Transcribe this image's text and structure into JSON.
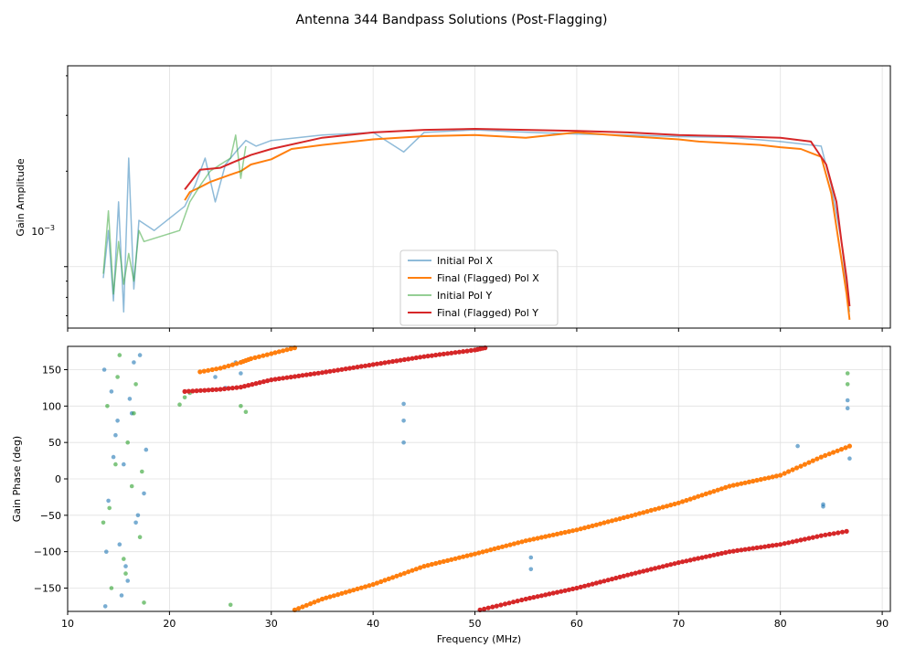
{
  "chart_data": [
    {
      "type": "line",
      "panel": "top",
      "suptitle": "Antenna 344 Bandpass Solutions (Post-Flagging)",
      "xlabel": "",
      "ylabel": "Gain Amplitude",
      "yscale": "log",
      "ylim": [
        0.00064,
        0.0043
      ],
      "xlim": [
        10,
        90.8
      ],
      "ytick_label": "10",
      "ytick_label_exp": "−3",
      "grid": true,
      "legend_position": "lower-center",
      "series": [
        {
          "name": "Initial Pol X",
          "color": "#1f77b4",
          "alpha": 0.5,
          "x": [
            13.5,
            14.0,
            14.5,
            15.0,
            15.5,
            16.0,
            16.5,
            17.0,
            18.5,
            21.5,
            22.5,
            23.5,
            24.5,
            25.5,
            26.5,
            27.5,
            28.5,
            30,
            35,
            40,
            43,
            45,
            50,
            55.5,
            60,
            65,
            70,
            75,
            80,
            84,
            85,
            86,
            86.5,
            86.8
          ],
          "y": [
            0.00092,
            0.0013,
            0.00078,
            0.0016,
            0.00072,
            0.0022,
            0.00085,
            0.0014,
            0.0013,
            0.00155,
            0.0018,
            0.0022,
            0.0016,
            0.0021,
            0.0023,
            0.0025,
            0.0024,
            0.0025,
            0.0026,
            0.00265,
            0.0023,
            0.00265,
            0.0027,
            0.00265,
            0.00262,
            0.0026,
            0.00257,
            0.00256,
            0.00248,
            0.0024,
            0.0018,
            0.0012,
            0.00085,
            0.00072
          ]
        },
        {
          "name": "Final (Flagged) Pol X",
          "color": "#ff7f0e",
          "alpha": 1.0,
          "x": [
            21.5,
            22,
            23,
            24,
            25,
            26,
            27,
            28,
            30,
            32,
            35,
            40,
            45,
            50,
            55,
            60,
            65,
            70,
            72,
            75,
            78,
            80,
            82,
            84,
            85,
            86,
            86.5,
            86.8
          ],
          "y": [
            0.00162,
            0.00172,
            0.00178,
            0.00185,
            0.0019,
            0.00195,
            0.002,
            0.0021,
            0.00218,
            0.00235,
            0.00242,
            0.00252,
            0.00258,
            0.0026,
            0.00255,
            0.00265,
            0.00258,
            0.00252,
            0.00248,
            0.00245,
            0.00242,
            0.00238,
            0.00235,
            0.00222,
            0.0017,
            0.00105,
            0.00082,
            0.00068
          ]
        },
        {
          "name": "Initial Pol Y",
          "color": "#2ca02c",
          "alpha": 0.5,
          "x": [
            13.5,
            14.0,
            14.5,
            15.0,
            15.5,
            16.0,
            16.5,
            17.0,
            17.5,
            21.0,
            22.0,
            23.0,
            24.0,
            25.0,
            26.0,
            26.5,
            27.0,
            27.5
          ],
          "y": [
            0.00095,
            0.0015,
            0.00082,
            0.0012,
            0.00088,
            0.0011,
            0.0009,
            0.0013,
            0.0012,
            0.0013,
            0.0016,
            0.0018,
            0.002,
            0.0021,
            0.0022,
            0.0026,
            0.0019,
            0.0024
          ]
        },
        {
          "name": "Final (Flagged) Pol Y",
          "color": "#d62728",
          "alpha": 1.0,
          "x": [
            21.5,
            23,
            25,
            26.5,
            28,
            30,
            35,
            40,
            45,
            50,
            55,
            60,
            65,
            70,
            75,
            80,
            83,
            84.5,
            85.5,
            86,
            86.5,
            86.8
          ],
          "y": [
            0.00175,
            0.00202,
            0.00205,
            0.00215,
            0.00225,
            0.00235,
            0.00255,
            0.00265,
            0.0027,
            0.00272,
            0.0027,
            0.00268,
            0.00265,
            0.0026,
            0.00258,
            0.00255,
            0.00248,
            0.0021,
            0.0016,
            0.0012,
            0.00092,
            0.00075
          ]
        }
      ]
    },
    {
      "type": "scatter",
      "panel": "bottom",
      "xlabel": "Frequency (MHz)",
      "ylabel": "Gain Phase (deg)",
      "xlim": [
        10,
        90.8
      ],
      "ylim": [
        -182,
        182
      ],
      "xticks": [
        10,
        20,
        30,
        40,
        50,
        60,
        70,
        80,
        90
      ],
      "yticks": [
        -150,
        -100,
        -50,
        0,
        50,
        100,
        150
      ],
      "grid": true,
      "series": [
        {
          "name": "Initial Pol X",
          "color": "#1f77b4",
          "alpha": 0.6,
          "x": [
            13.6,
            14.0,
            14.3,
            14.7,
            15.1,
            15.5,
            15.9,
            16.3,
            16.7,
            17.1,
            17.5,
            13.8,
            14.5,
            15.3,
            16.1,
            16.9,
            17.7,
            13.7,
            14.9,
            15.7,
            16.5,
            24.5,
            25.5,
            26.5,
            27.0,
            43.0,
            43.0,
            43.0,
            55.5,
            55.5,
            81.7,
            84.2,
            84.2,
            86.6,
            86.6,
            86.8
          ],
          "y": [
            150,
            -30,
            120,
            60,
            -90,
            20,
            -140,
            90,
            -60,
            170,
            -20,
            -100,
            30,
            -160,
            110,
            -50,
            40,
            -175,
            80,
            -120,
            160,
            140,
            125,
            160,
            145,
            103,
            80,
            50,
            -108,
            -124,
            45,
            -35,
            -38,
            108,
            97,
            28
          ]
        },
        {
          "name": "Final (Flagged) Pol X",
          "color": "#ff7f0e",
          "alpha": 1.0,
          "x": [
            23,
            25,
            27,
            28,
            30,
            32.3
          ],
          "y": [
            147,
            152,
            160,
            165,
            172,
            180
          ],
          "x2": [
            32.3,
            35,
            40,
            45,
            50,
            55,
            60,
            65,
            70,
            75,
            80,
            84,
            86.8
          ],
          "y2": [
            -180,
            -165,
            -145,
            -120,
            -103,
            -85,
            -70,
            -52,
            -33,
            -10,
            5,
            30,
            45
          ]
        },
        {
          "name": "Initial Pol Y",
          "color": "#2ca02c",
          "alpha": 0.6,
          "x": [
            13.5,
            13.9,
            14.3,
            14.7,
            15.1,
            15.5,
            15.9,
            16.3,
            16.7,
            17.1,
            17.5,
            14.1,
            14.9,
            15.7,
            16.5,
            17.3,
            21.0,
            21.5,
            22.0,
            26.0,
            27.0,
            27.5,
            86.6,
            86.6
          ],
          "y": [
            -60,
            100,
            -150,
            20,
            170,
            -110,
            50,
            -10,
            130,
            -80,
            -170,
            -40,
            140,
            -130,
            90,
            10,
            102,
            112,
            118,
            -173,
            100,
            92,
            145,
            130
          ]
        },
        {
          "name": "Final (Flagged) Pol Y",
          "color": "#d62728",
          "alpha": 1.0,
          "x": [
            21.5,
            25,
            27,
            30,
            35,
            40,
            45,
            50,
            51.0
          ],
          "y": [
            120,
            123,
            126,
            136,
            146,
            157,
            168,
            177,
            180
          ],
          "x2": [
            50.5,
            55,
            60,
            65,
            70,
            75,
            80,
            84,
            86.5
          ],
          "y2": [
            -180,
            -165,
            -150,
            -132,
            -115,
            -100,
            -90,
            -78,
            -72
          ]
        }
      ]
    }
  ],
  "legend": {
    "items": [
      {
        "label": "Initial Pol X",
        "color": "#1f77b4"
      },
      {
        "label": "Final (Flagged) Pol X",
        "color": "#ff7f0e"
      },
      {
        "label": "Initial Pol Y",
        "color": "#2ca02c"
      },
      {
        "label": "Final (Flagged) Pol Y",
        "color": "#d62728"
      }
    ]
  }
}
